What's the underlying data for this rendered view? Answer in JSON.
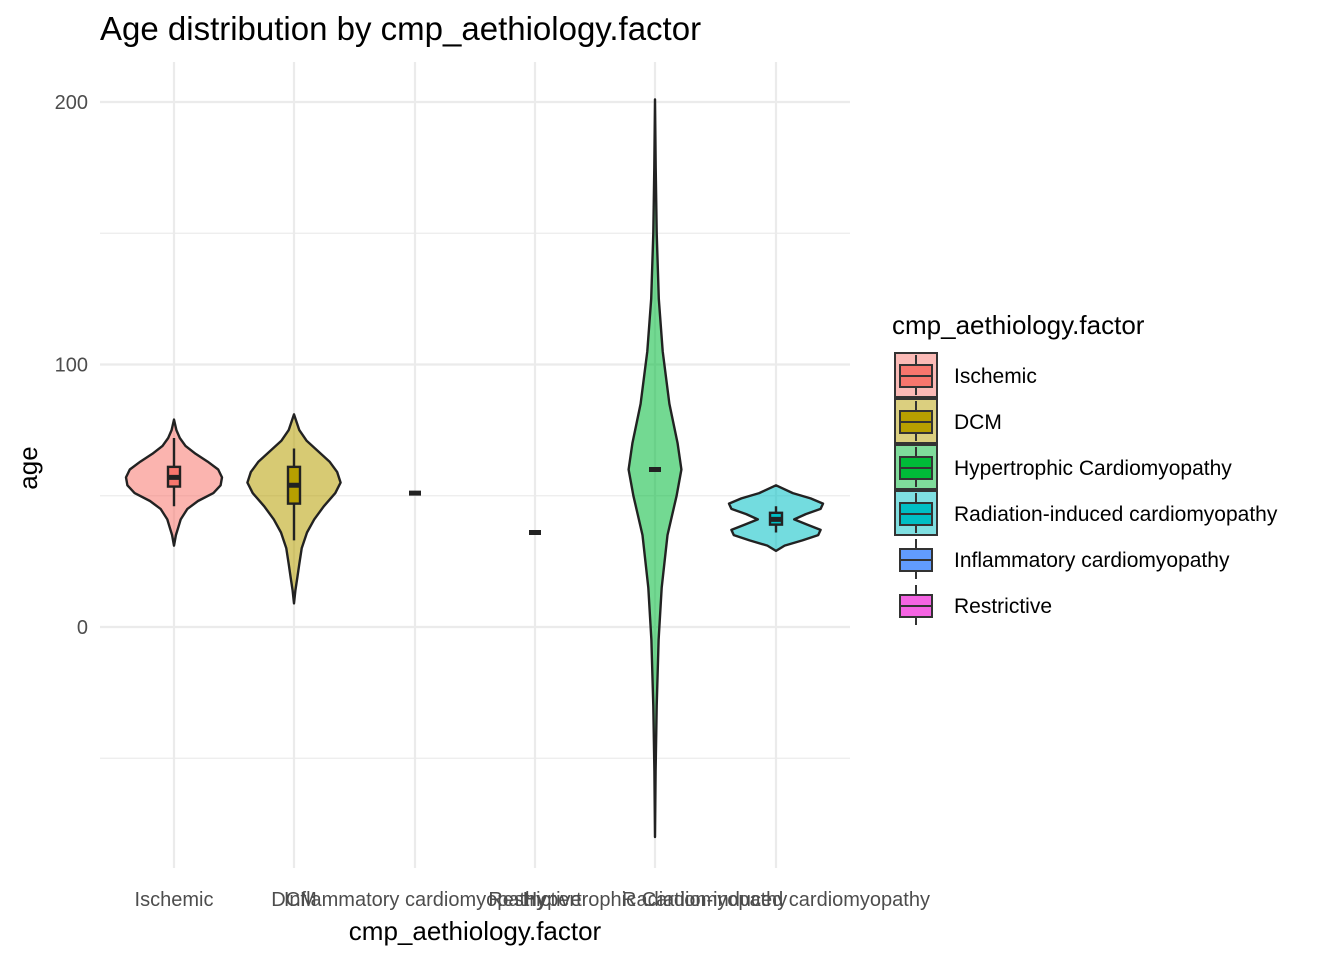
{
  "chart_data": {
    "type": "violin",
    "title": "Age distribution by cmp_aethiology.factor",
    "xlabel": "cmp_aethiology.factor",
    "ylabel": "age",
    "ylim": [
      -92,
      215
    ],
    "yticks": [
      0,
      100,
      200
    ],
    "grid": true,
    "legend_position": "right",
    "legend_title": "cmp_aethiology.factor",
    "x_tick_labels": [
      "Ischemic",
      "DCM",
      "Inflammatory cardiomyopathy",
      "Restrictive",
      "Hypertrophic  Cardiomyopathy",
      "Radiation-induced cardiomyopathy"
    ],
    "legend_items": [
      {
        "label": "Ischemic",
        "color": "#F8766D"
      },
      {
        "label": "DCM",
        "color": "#B79F00"
      },
      {
        "label": "Hypertrophic  Cardiomyopathy",
        "color": "#00BA38"
      },
      {
        "label": "Radiation-induced cardiomyopathy",
        "color": "#00BFC4"
      },
      {
        "label": "Inflammatory cardiomyopathy",
        "color": "#619CFF"
      },
      {
        "label": "Restrictive",
        "color": "#F564E3"
      }
    ],
    "series": [
      {
        "category": "Ischemic",
        "color": "#F8766D",
        "min": 31,
        "q1": 53.5,
        "median": 57,
        "q3": 61,
        "max": 79,
        "whisker_low": 46,
        "whisker_high": 72,
        "density": [
          [
            31,
            0
          ],
          [
            35,
            0.04
          ],
          [
            38,
            0.09
          ],
          [
            41,
            0.14
          ],
          [
            45,
            0.28
          ],
          [
            48,
            0.5
          ],
          [
            51,
            0.82
          ],
          [
            54,
            0.97
          ],
          [
            57,
            1.0
          ],
          [
            60,
            0.92
          ],
          [
            63,
            0.7
          ],
          [
            66,
            0.45
          ],
          [
            69,
            0.24
          ],
          [
            72,
            0.12
          ],
          [
            75,
            0.05
          ],
          [
            79,
            0
          ]
        ]
      },
      {
        "category": "DCM",
        "color": "#B79F00",
        "min": 9,
        "q1": 47,
        "median": 54,
        "q3": 61,
        "max": 81,
        "whisker_low": 33,
        "whisker_high": 68,
        "density": [
          [
            9,
            0
          ],
          [
            14,
            0.03
          ],
          [
            19,
            0.07
          ],
          [
            24,
            0.11
          ],
          [
            30,
            0.16
          ],
          [
            36,
            0.27
          ],
          [
            41,
            0.42
          ],
          [
            46,
            0.62
          ],
          [
            51,
            0.86
          ],
          [
            55,
            0.97
          ],
          [
            59,
            0.9
          ],
          [
            63,
            0.74
          ],
          [
            67,
            0.5
          ],
          [
            71,
            0.26
          ],
          [
            75,
            0.11
          ],
          [
            81,
            0
          ]
        ]
      },
      {
        "category": "Inflammatory cardiomyopathy",
        "color": "#619CFF",
        "min": 51,
        "q1": 51,
        "median": 51,
        "q3": 51,
        "max": 51,
        "whisker_low": 51,
        "whisker_high": 51,
        "density": []
      },
      {
        "category": "Restrictive",
        "color": "#F564E3",
        "min": 36,
        "q1": 36,
        "median": 36,
        "q3": 36,
        "max": 36,
        "whisker_low": 36,
        "whisker_high": 36,
        "density": []
      },
      {
        "category": "Hypertrophic  Cardiomyopathy",
        "color": "#00BA38",
        "min": -80,
        "q1": 60,
        "median": 60,
        "q3": 60,
        "max": 201,
        "whisker_low": 60,
        "whisker_high": 60,
        "density": [
          [
            -80,
            0
          ],
          [
            -55,
            0.012
          ],
          [
            -30,
            0.035
          ],
          [
            -5,
            0.075
          ],
          [
            15,
            0.14
          ],
          [
            35,
            0.26
          ],
          [
            50,
            0.45
          ],
          [
            60,
            0.55
          ],
          [
            70,
            0.47
          ],
          [
            85,
            0.3
          ],
          [
            105,
            0.16
          ],
          [
            125,
            0.08
          ],
          [
            150,
            0.035
          ],
          [
            175,
            0.014
          ],
          [
            201,
            0
          ]
        ]
      },
      {
        "category": "Radiation-induced cardiomyopathy",
        "color": "#00BFC4",
        "min": 29,
        "q1": 39,
        "median": 41,
        "q3": 43.5,
        "max": 54,
        "whisker_low": 36,
        "whisker_high": 46,
        "density": [
          [
            29,
            0
          ],
          [
            31,
            0.18
          ],
          [
            33,
            0.55
          ],
          [
            35,
            0.88
          ],
          [
            37,
            0.93
          ],
          [
            39,
            0.65
          ],
          [
            41,
            0.38
          ],
          [
            43,
            0.62
          ],
          [
            45,
            0.93
          ],
          [
            47,
            0.98
          ],
          [
            49,
            0.72
          ],
          [
            51,
            0.35
          ],
          [
            54,
            0
          ]
        ]
      }
    ]
  }
}
